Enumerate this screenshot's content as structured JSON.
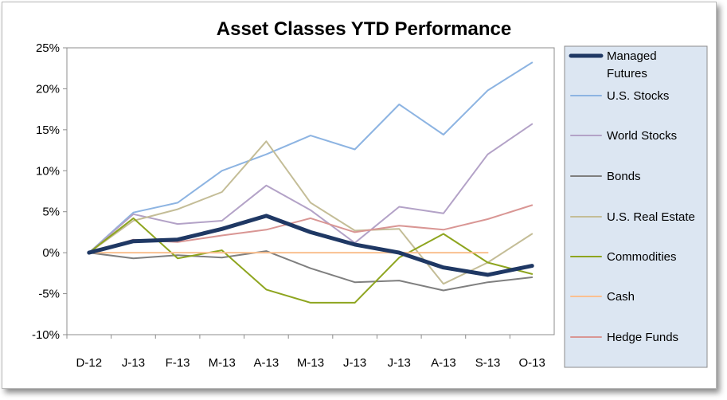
{
  "chart_data": {
    "type": "line",
    "title": "Asset Classes YTD Performance",
    "xlabel": "",
    "ylabel": "",
    "categories": [
      "D-12",
      "J-13",
      "F-13",
      "M-13",
      "A-13",
      "M-13",
      "J-13",
      "J-13",
      "A-13",
      "S-13",
      "O-13"
    ],
    "y_ticks": [
      "25%",
      "20%",
      "15%",
      "10%",
      "5%",
      "0%",
      "-5%",
      "-10%"
    ],
    "ylim": [
      -10,
      25
    ],
    "grid": false,
    "legend_position": "right",
    "series": [
      {
        "name": "Managed Futures",
        "color": "#1f3864",
        "width": 5,
        "values": [
          0,
          1.4,
          1.6,
          2.9,
          4.5,
          2.5,
          1.0,
          0.0,
          -1.8,
          -2.7,
          -1.6
        ]
      },
      {
        "name": "U.S. Stocks",
        "color": "#8db4e2",
        "width": 2,
        "values": [
          0,
          4.9,
          6.1,
          10.0,
          12.0,
          14.3,
          12.6,
          18.1,
          14.4,
          19.8,
          23.2
        ]
      },
      {
        "name": "World Stocks",
        "color": "#b3a2c7",
        "width": 2,
        "values": [
          0,
          4.7,
          3.5,
          3.9,
          8.2,
          5.2,
          1.2,
          5.6,
          4.8,
          12.0,
          15.7
        ]
      },
      {
        "name": "Bonds",
        "color": "#7f7f7f",
        "width": 2,
        "values": [
          0,
          -0.7,
          -0.3,
          -0.6,
          0.2,
          -1.9,
          -3.6,
          -3.4,
          -4.6,
          -3.6,
          -3.0
        ]
      },
      {
        "name": "U.S. Real Estate",
        "color": "#c4bd97",
        "width": 2,
        "values": [
          0,
          3.9,
          5.3,
          7.4,
          13.6,
          6.1,
          2.7,
          2.9,
          -3.8,
          -1.2,
          2.3
        ]
      },
      {
        "name": "Commodities",
        "color": "#8ea51f",
        "width": 2,
        "values": [
          0,
          4.2,
          -0.7,
          0.3,
          -4.5,
          -6.1,
          -6.1,
          -0.6,
          2.3,
          -1.2,
          -2.6
        ]
      },
      {
        "name": "Cash",
        "color": "#fac090",
        "width": 2,
        "values": [
          0,
          0,
          0,
          0,
          0,
          0,
          0,
          0,
          0,
          0,
          null
        ]
      },
      {
        "name": "Hedge Funds",
        "color": "#d99694",
        "width": 2,
        "values": [
          0,
          1.6,
          1.3,
          2.1,
          2.8,
          4.2,
          2.5,
          3.3,
          2.8,
          4.1,
          5.8
        ]
      }
    ]
  }
}
